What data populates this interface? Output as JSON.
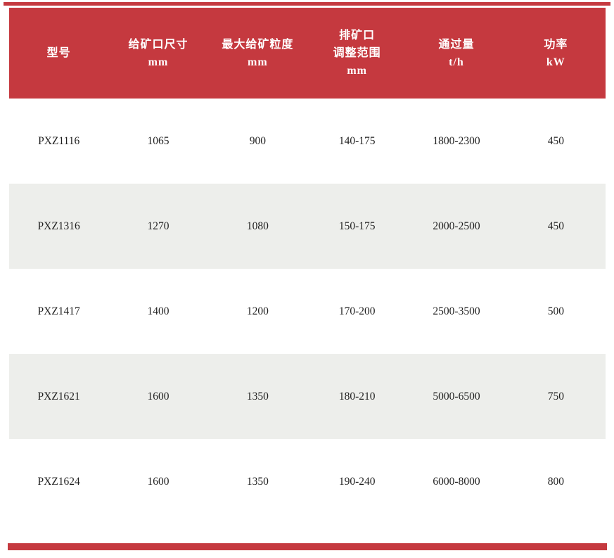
{
  "theme": {
    "accent_red": "#C5393F",
    "alt_row_bg": "#EDEEEB",
    "header_text_color": "#FFFFFF",
    "body_text_color": "#1F1F1F"
  },
  "table": {
    "columns": [
      {
        "lines": [
          "型号"
        ]
      },
      {
        "lines": [
          "给矿口尺寸",
          "mm"
        ]
      },
      {
        "lines": [
          "最大给矿粒度",
          "mm"
        ]
      },
      {
        "lines": [
          "排矿口",
          "调整范围",
          "mm"
        ]
      },
      {
        "lines": [
          "通过量",
          "t/h"
        ]
      },
      {
        "lines": [
          "功率",
          "kW"
        ]
      }
    ],
    "rows": [
      {
        "model": "PXZ1116",
        "feed_opening": "1065",
        "max_feed_size": "900",
        "discharge_range": "140-175",
        "capacity": "1800-2300",
        "power": "450"
      },
      {
        "model": "PXZ1316",
        "feed_opening": "1270",
        "max_feed_size": "1080",
        "discharge_range": "150-175",
        "capacity": "2000-2500",
        "power": "450"
      },
      {
        "model": "PXZ1417",
        "feed_opening": "1400",
        "max_feed_size": "1200",
        "discharge_range": "170-200",
        "capacity": "2500-3500",
        "power": "500"
      },
      {
        "model": "PXZ1621",
        "feed_opening": "1600",
        "max_feed_size": "1350",
        "discharge_range": "180-210",
        "capacity": "5000-6500",
        "power": "750"
      },
      {
        "model": "PXZ1624",
        "feed_opening": "1600",
        "max_feed_size": "1350",
        "discharge_range": "190-240",
        "capacity": "6000-8000",
        "power": "800"
      }
    ]
  }
}
